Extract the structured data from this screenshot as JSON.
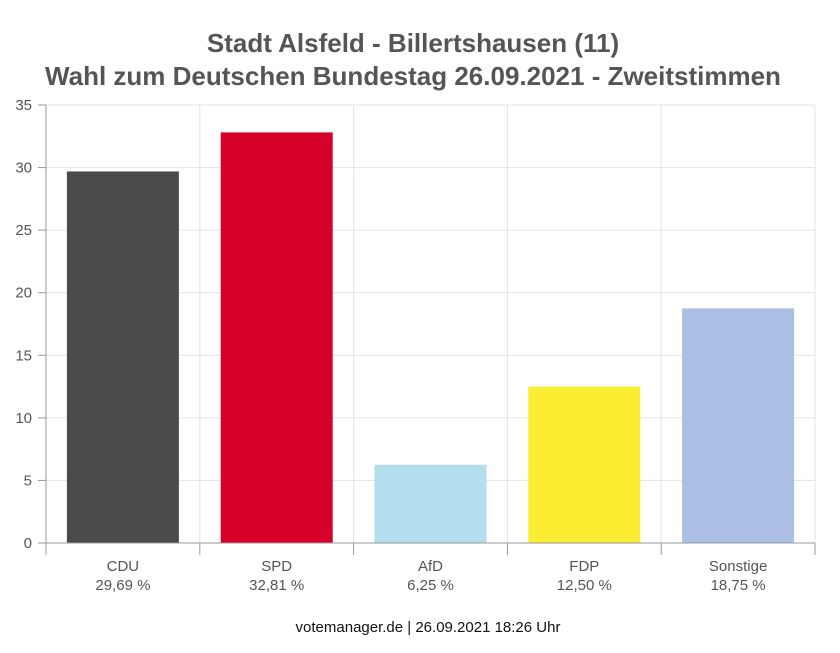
{
  "chart_data": {
    "type": "bar",
    "title": "Stadt Alsfeld - Billertshausen (11)",
    "subtitle": "Wahl zum Deutschen Bundestag 26.09.2021  - Zweitstimmen",
    "categories": [
      "CDU",
      "SPD",
      "AfD",
      "FDP",
      "Sonstige"
    ],
    "values": [
      29.69,
      32.81,
      6.25,
      12.5,
      18.75
    ],
    "value_labels": [
      "29,69 %",
      "32,81 %",
      "6,25 %",
      "12,50 %",
      "18,75 %"
    ],
    "colors": [
      "#4a4a4a",
      "#d7002a",
      "#b2deed",
      "#fbed31",
      "#abbfe4"
    ],
    "ylim": [
      0,
      35
    ],
    "yticks": [
      0,
      5,
      10,
      15,
      20,
      25,
      30,
      35
    ],
    "grid": true,
    "xlabel": "",
    "ylabel": ""
  },
  "footer": "votemanager.de | 26.09.2021 18:26 Uhr"
}
